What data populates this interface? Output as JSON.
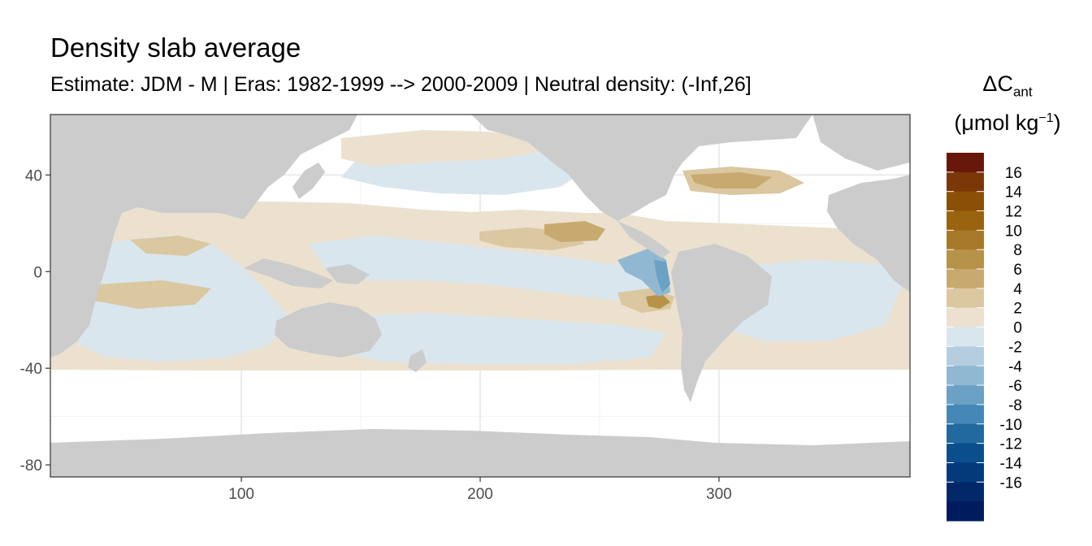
{
  "chart_data": {
    "type": "heatmap",
    "title": "Density slab average",
    "subtitle": "Estimate: JDM - M | Eras: 1982-1999 --> 2000-2009 | Neutral density: (-Inf,26]",
    "legend": {
      "title_symbol": "ΔC",
      "title_subscript": "ant",
      "units_prefix": "(μmol kg",
      "units_superscript": "−1",
      "units_suffix": ")",
      "placement": "right",
      "labels": [
        "16",
        "14",
        "12",
        "10",
        "8",
        "6",
        "4",
        "2",
        "0",
        "-2",
        "-4",
        "-6",
        "-8",
        "-10",
        "-12",
        "-14",
        "-16"
      ],
      "colors": [
        "#67180a",
        "#7b3708",
        "#8c4f07",
        "#99630f",
        "#a8792a",
        "#b79249",
        "#c8aa70",
        "#dbc7a0",
        "#ece1cf",
        "#dae6ee",
        "#b4cedf",
        "#90b8d2",
        "#6aa1c5",
        "#4587b6",
        "#21699f",
        "#0a4f8c",
        "#053a7a",
        "#03286a",
        "#001c5e"
      ]
    },
    "x_ticks": [
      100,
      200,
      300
    ],
    "y_ticks": [
      40,
      0,
      -40,
      -80
    ],
    "xlim": [
      20,
      380
    ],
    "ylim": [
      -85,
      65
    ],
    "grid": true,
    "land_color": "#cccccc",
    "no_data_color": "#ffffff"
  }
}
